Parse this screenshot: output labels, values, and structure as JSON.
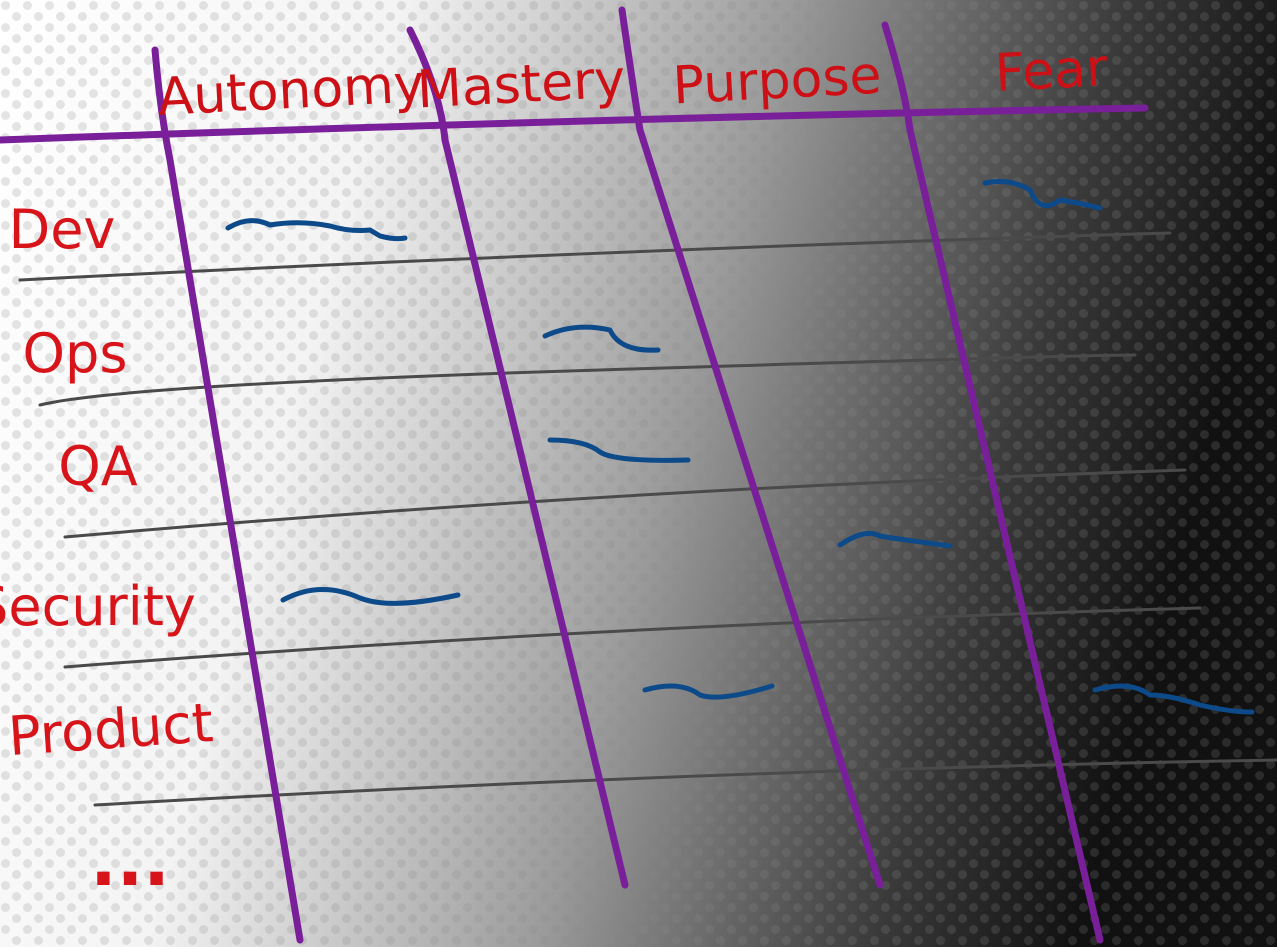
{
  "table": {
    "columns": [
      "Autonomy",
      "Mastery",
      "Purpose",
      "Fear"
    ],
    "rows": [
      "Dev",
      "Ops",
      "QA",
      "Security",
      "Product",
      "..."
    ]
  }
}
